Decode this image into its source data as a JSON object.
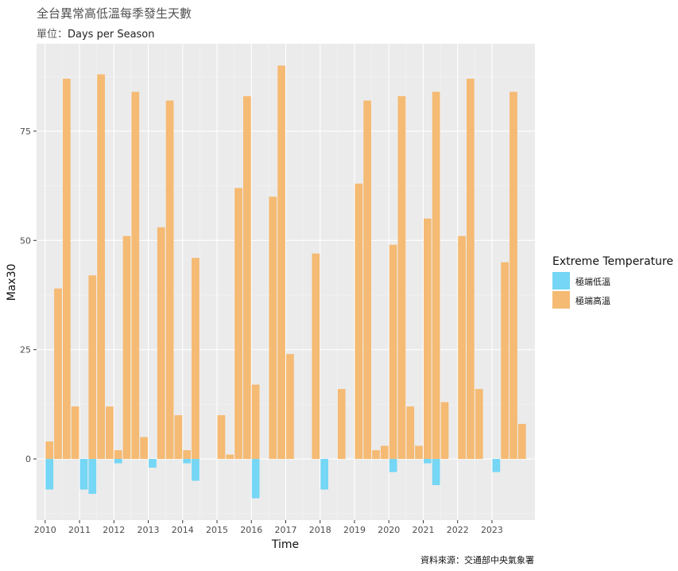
{
  "chart_data": {
    "type": "bar",
    "title": "全台異常高低溫每季發生天數",
    "subtitle_label": "單位：",
    "subtitle_value": "Days per Season",
    "xlabel": "Time",
    "ylabel": "Max30",
    "caption": "資料來源：交通部中央氣象署",
    "legend_title": "Extreme Temperature",
    "legend_position": "right",
    "grid": true,
    "xlim": [
      2009.75,
      2024.25
    ],
    "ylim": [
      -14,
      95
    ],
    "x_ticks": [
      2010,
      2011,
      2012,
      2013,
      2014,
      2015,
      2016,
      2017,
      2018,
      2019,
      2020,
      2021,
      2022,
      2023
    ],
    "y_ticks": [
      0,
      25,
      50,
      75
    ],
    "quarters": [
      "2010-Q1",
      "2010-Q2",
      "2010-Q3",
      "2010-Q4",
      "2011-Q1",
      "2011-Q2",
      "2011-Q3",
      "2011-Q4",
      "2012-Q1",
      "2012-Q2",
      "2012-Q3",
      "2012-Q4",
      "2013-Q1",
      "2013-Q2",
      "2013-Q3",
      "2013-Q4",
      "2014-Q1",
      "2014-Q2",
      "2014-Q3",
      "2014-Q4",
      "2015-Q1",
      "2015-Q2",
      "2015-Q3",
      "2015-Q4",
      "2016-Q1",
      "2016-Q2",
      "2016-Q3",
      "2016-Q4",
      "2017-Q1",
      "2017-Q2",
      "2017-Q3",
      "2017-Q4",
      "2018-Q1",
      "2018-Q2",
      "2018-Q3",
      "2018-Q4",
      "2019-Q1",
      "2019-Q2",
      "2019-Q3",
      "2019-Q4",
      "2020-Q1",
      "2020-Q2",
      "2020-Q3",
      "2020-Q4",
      "2021-Q1",
      "2021-Q2",
      "2021-Q3",
      "2021-Q4",
      "2022-Q1",
      "2022-Q2",
      "2022-Q3",
      "2022-Q4",
      "2023-Q1",
      "2023-Q2",
      "2023-Q3",
      "2023-Q4"
    ],
    "series": [
      {
        "name": "極端低溫",
        "color": "#75d6f5",
        "values": [
          -7,
          0,
          0,
          0,
          -7,
          -8,
          0,
          0,
          -1,
          0,
          0,
          0,
          -2,
          0,
          0,
          0,
          -1,
          -5,
          0,
          0,
          0,
          0,
          0,
          0,
          -9,
          0,
          0,
          0,
          0,
          0,
          0,
          0,
          -7,
          0,
          0,
          0,
          0,
          0,
          0,
          0,
          -3,
          0,
          0,
          0,
          -1,
          -6,
          0,
          0,
          0,
          0,
          0,
          0,
          -3,
          0,
          0,
          0
        ]
      },
      {
        "name": "極端高溫",
        "color": "#f5ba73",
        "values": [
          4,
          39,
          87,
          12,
          0,
          42,
          88,
          12,
          2,
          51,
          84,
          5,
          0,
          53,
          82,
          10,
          2,
          46,
          0,
          0,
          10,
          1,
          62,
          83,
          17,
          0,
          60,
          90,
          24,
          0,
          0,
          47,
          0,
          0,
          16,
          0,
          63,
          82,
          2,
          3,
          49,
          83,
          12,
          3,
          55,
          84,
          13,
          0,
          51,
          87,
          16,
          0,
          0,
          45,
          84,
          8
        ]
      }
    ]
  }
}
